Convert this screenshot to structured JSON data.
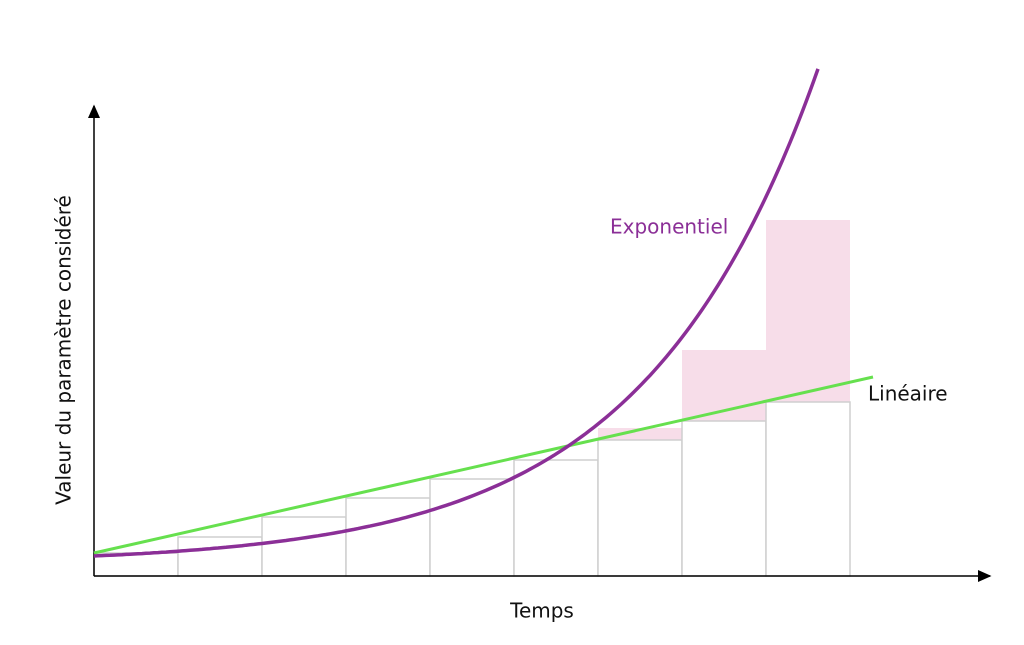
{
  "axes": {
    "y_label": "Valeur du paramètre considéré",
    "x_label": "Temps"
  },
  "curves": {
    "exponential": "Exponentiel",
    "linear": "Linéaire"
  }
}
